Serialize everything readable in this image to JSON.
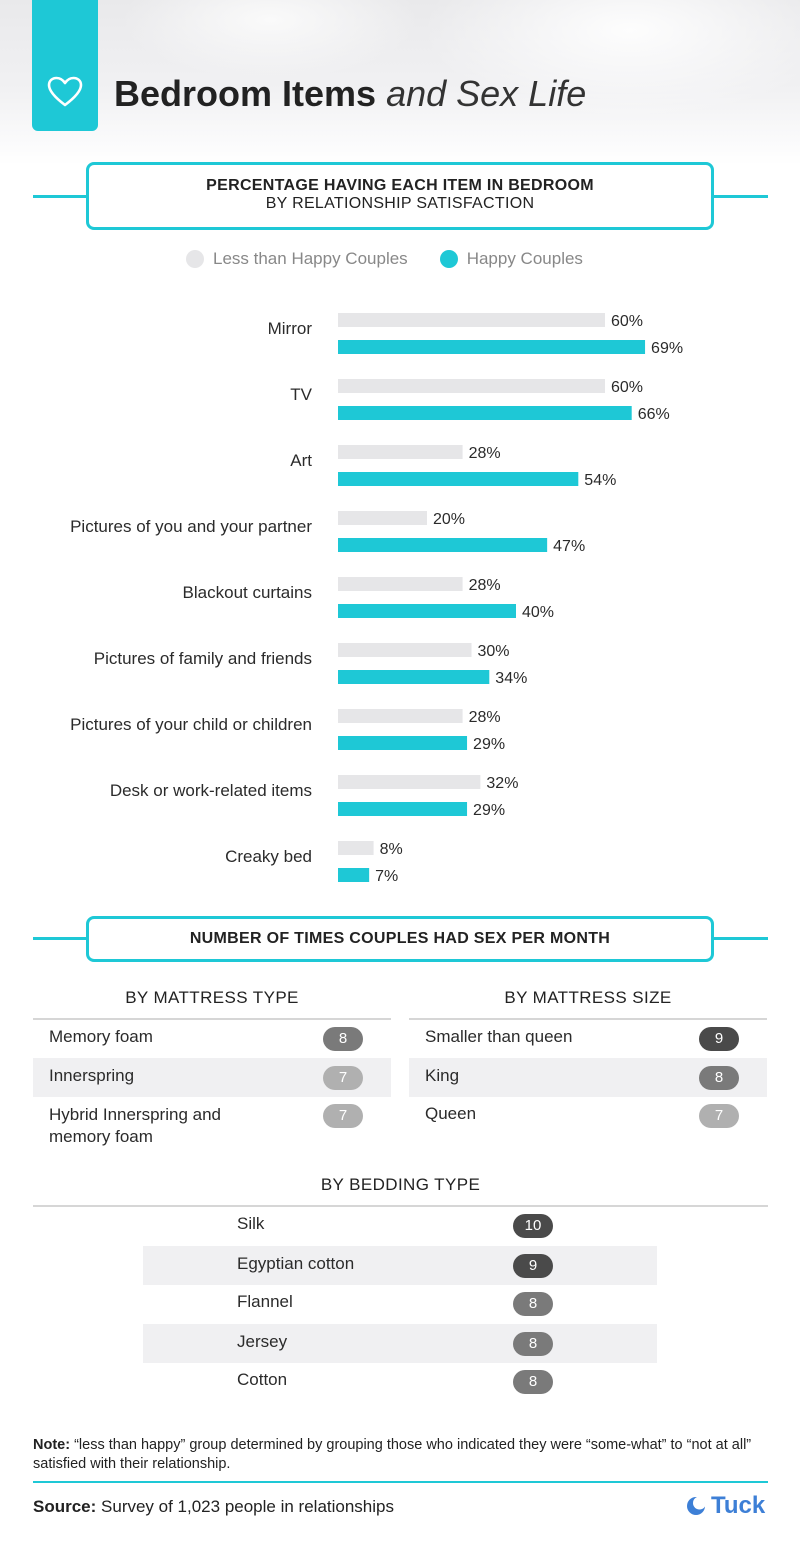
{
  "header": {
    "title_strong": "Bedroom Items",
    "title_italic": "and Sex Life"
  },
  "section1": {
    "title": "PERCENTAGE HAVING EACH ITEM IN BEDROOM",
    "subtitle": "BY RELATIONSHIP SATISFACTION"
  },
  "legend": {
    "less_happy": "Less than Happy Couples",
    "happy": "Happy Couples"
  },
  "colors": {
    "accent": "#1ec8d6",
    "less_happy": "#e6e6e8",
    "happy": "#1ec8d6",
    "pill_dark": "#4a4a4a",
    "pill_mid": "#7a7a7a",
    "pill_light": "#b0b0b0"
  },
  "chart_data": {
    "type": "bar",
    "orientation": "horizontal",
    "title": "PERCENTAGE HAVING EACH ITEM IN BEDROOM",
    "subtitle": "BY RELATIONSHIP SATISFACTION",
    "categories": [
      "Mirror",
      "TV",
      "Art",
      "Pictures of you and your partner",
      "Blackout curtains",
      "Pictures of family and friends",
      "Pictures of your child or children",
      "Desk or work-related items",
      "Creaky bed"
    ],
    "series": [
      {
        "name": "Less than Happy Couples",
        "values": [
          60,
          60,
          28,
          20,
          28,
          30,
          28,
          32,
          8
        ],
        "labels": [
          "60%",
          "60%",
          "28%",
          "20%",
          "28%",
          "30%",
          "28%",
          "32%",
          "8%"
        ]
      },
      {
        "name": "Happy Couples",
        "values": [
          69,
          66,
          54,
          47,
          40,
          34,
          29,
          29,
          7
        ],
        "labels": [
          "69%",
          "66%",
          "54%",
          "47%",
          "40%",
          "34%",
          "29%",
          "29%",
          "7%"
        ]
      }
    ],
    "xlim": [
      0,
      100
    ],
    "legend": "top",
    "grid": false
  },
  "section2": {
    "title": "NUMBER OF TIMES COUPLES HAD SEX PER MONTH",
    "mattress_type": {
      "heading": "BY MATTRESS TYPE",
      "rows": [
        {
          "label": "Memory foam",
          "value": "8"
        },
        {
          "label": "Innerspring",
          "value": "7"
        },
        {
          "label": "Hybrid Innerspring and memory foam",
          "value": "7"
        }
      ]
    },
    "mattress_size": {
      "heading": "BY MATTRESS SIZE",
      "rows": [
        {
          "label": "Smaller than queen",
          "value": "9"
        },
        {
          "label": "King",
          "value": "8"
        },
        {
          "label": "Queen",
          "value": "7"
        }
      ]
    },
    "bedding_type": {
      "heading": "BY BEDDING TYPE",
      "rows": [
        {
          "label": "Silk",
          "value": "10"
        },
        {
          "label": "Egyptian cotton",
          "value": "9"
        },
        {
          "label": "Flannel",
          "value": "8"
        },
        {
          "label": "Jersey",
          "value": "8"
        },
        {
          "label": "Cotton",
          "value": "8"
        }
      ]
    }
  },
  "footer": {
    "note_label": "Note:",
    "note_text": " “less than happy” group determined by grouping those who indicated they were “some-what” to “not at all” satisfied with their relationship.",
    "source_label": "Source:",
    "source_text": " Survey of 1,023 people in relationships",
    "brand": "Tuck"
  }
}
